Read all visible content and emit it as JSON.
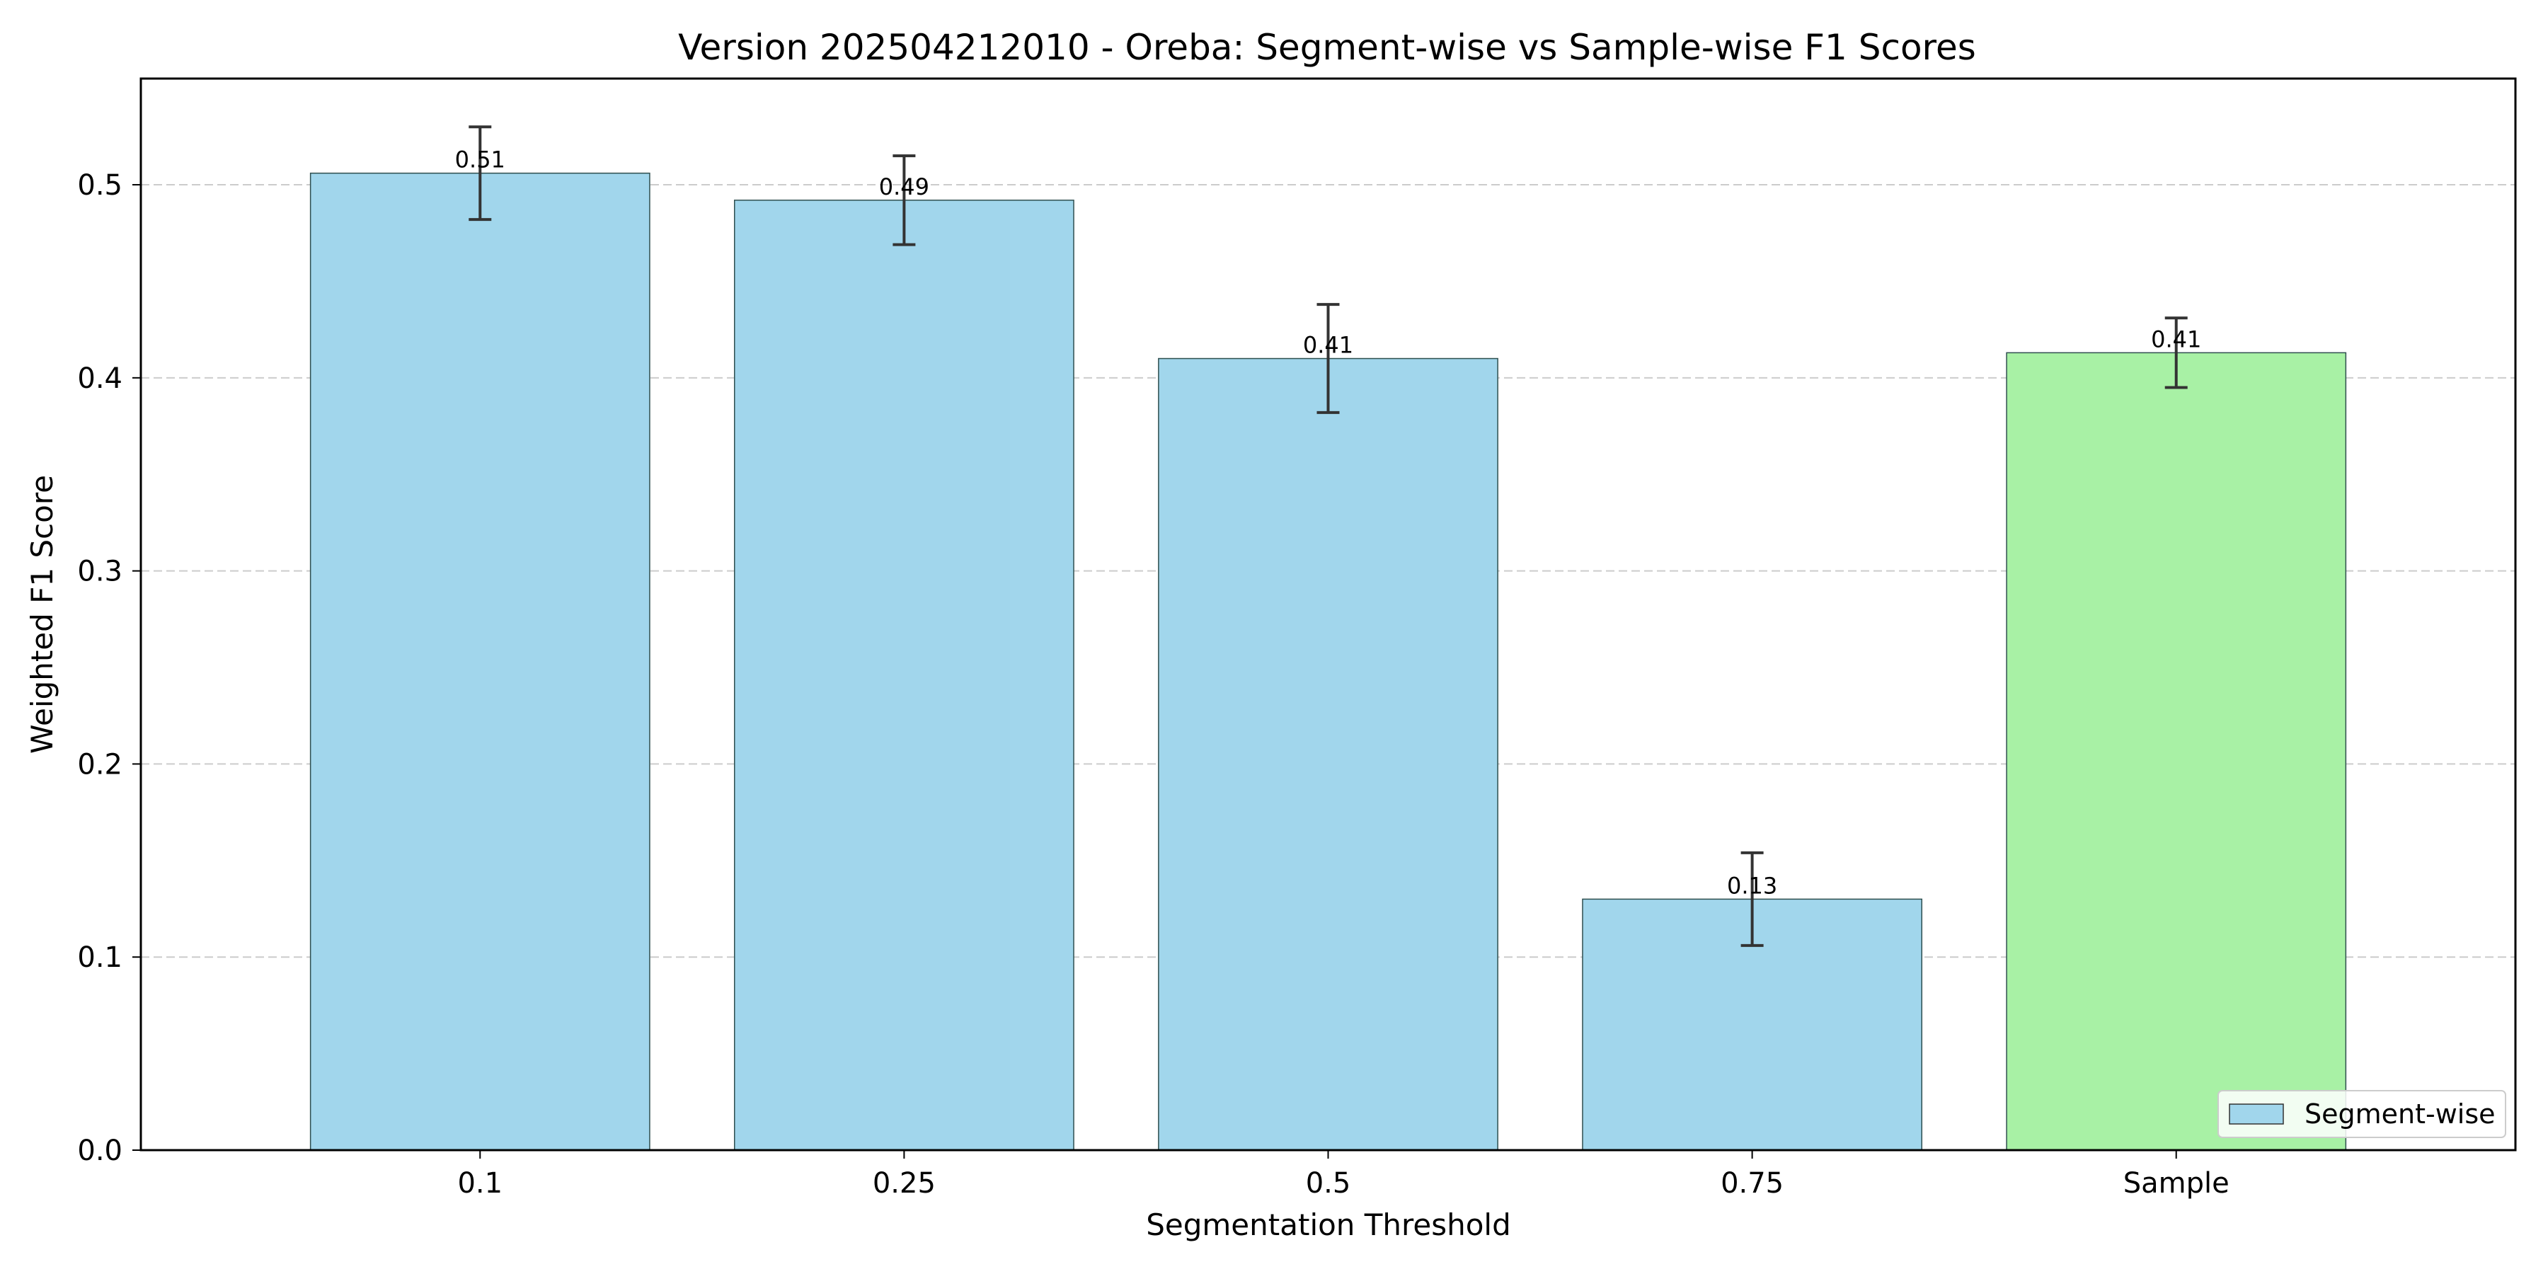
{
  "chart_data": {
    "type": "bar",
    "title": "Version 202504212010 - Oreba: Segment-wise vs Sample-wise F1 Scores",
    "xlabel": "Segmentation Threshold",
    "ylabel": "Weighted F1 Score",
    "categories": [
      "0.1",
      "0.25",
      "0.5",
      "0.75",
      "Sample"
    ],
    "values": [
      0.506,
      0.492,
      0.41,
      0.13,
      0.413
    ],
    "errors": [
      0.024,
      0.023,
      0.028,
      0.024,
      0.018
    ],
    "value_labels": [
      "0.51",
      "0.49",
      "0.41",
      "0.13",
      "0.41"
    ],
    "bar_colors": [
      "#a1d6ec",
      "#a1d6ec",
      "#a1d6ec",
      "#a1d6ec",
      "#a8f1a5"
    ],
    "ylim": [
      0,
      0.555
    ],
    "yticks": [
      {
        "value": 0.0,
        "label": "0.0"
      },
      {
        "value": 0.1,
        "label": "0.1"
      },
      {
        "value": 0.2,
        "label": "0.2"
      },
      {
        "value": 0.3,
        "label": "0.3"
      },
      {
        "value": 0.4,
        "label": "0.4"
      },
      {
        "value": 0.5,
        "label": "0.5"
      }
    ],
    "grid": "y dashed",
    "legend": {
      "placement": "bottom-right",
      "entries": [
        {
          "label": "Segment-wise",
          "color": "#a1d6ec"
        }
      ]
    }
  }
}
